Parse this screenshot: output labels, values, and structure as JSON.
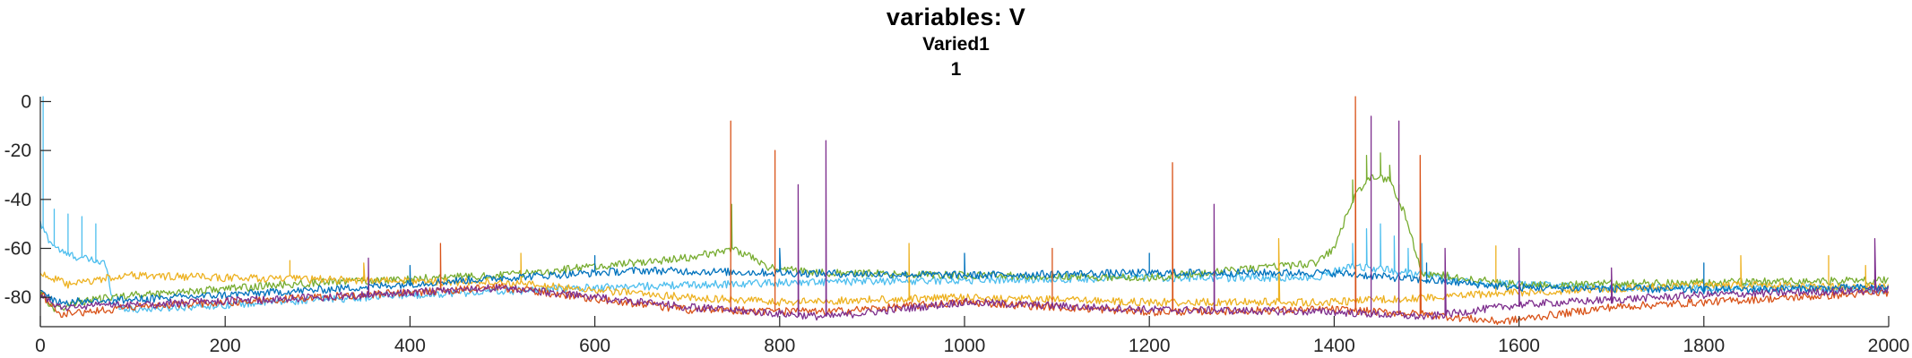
{
  "chart_data": {
    "type": "line",
    "title": "variables: V",
    "subtitle_lines": [
      "Varied1",
      "1"
    ],
    "xlabel": "",
    "ylabel": "",
    "xlim": [
      0,
      2000
    ],
    "ylim": [
      -92,
      2
    ],
    "x_ticks": [
      0,
      200,
      400,
      600,
      800,
      1000,
      1200,
      1400,
      1600,
      1800,
      2000
    ],
    "y_ticks": [
      0,
      -20,
      -40,
      -60,
      -80
    ],
    "grid": false,
    "legend": "none",
    "baseline": -92,
    "series": [
      {
        "color": "#4DBEEE",
        "baseline_points": [
          [
            0,
            -50
          ],
          [
            10,
            -57
          ],
          [
            25,
            -62
          ],
          [
            45,
            -64
          ],
          [
            70,
            -66
          ],
          [
            78,
            -80
          ],
          [
            85,
            -84
          ],
          [
            100,
            -85
          ],
          [
            150,
            -84
          ],
          [
            250,
            -82
          ],
          [
            400,
            -79
          ],
          [
            600,
            -76
          ],
          [
            800,
            -74
          ],
          [
            1000,
            -73
          ],
          [
            1200,
            -72
          ],
          [
            1380,
            -72
          ],
          [
            1420,
            -67
          ],
          [
            1500,
            -71
          ],
          [
            1560,
            -74
          ],
          [
            1700,
            -76
          ],
          [
            1900,
            -76
          ],
          [
            2000,
            -77
          ]
        ],
        "spikes": [
          [
            3,
            2
          ],
          [
            15,
            -44
          ],
          [
            30,
            -46
          ],
          [
            45,
            -47
          ],
          [
            60,
            -50
          ],
          [
            1420,
            -58
          ],
          [
            1435,
            -52
          ],
          [
            1450,
            -50
          ],
          [
            1465,
            -55
          ],
          [
            1480,
            -60
          ],
          [
            1495,
            -58
          ]
        ]
      },
      {
        "color": "#77AC30",
        "baseline_points": [
          [
            0,
            -78
          ],
          [
            15,
            -85
          ],
          [
            40,
            -82
          ],
          [
            100,
            -79
          ],
          [
            300,
            -74
          ],
          [
            500,
            -71
          ],
          [
            640,
            -66
          ],
          [
            700,
            -64
          ],
          [
            750,
            -60
          ],
          [
            790,
            -68
          ],
          [
            850,
            -70
          ],
          [
            1000,
            -71
          ],
          [
            1200,
            -72
          ],
          [
            1380,
            -66
          ],
          [
            1400,
            -60
          ],
          [
            1420,
            -40
          ],
          [
            1440,
            -30
          ],
          [
            1460,
            -32
          ],
          [
            1475,
            -45
          ],
          [
            1495,
            -70
          ],
          [
            1600,
            -75
          ],
          [
            1800,
            -74
          ],
          [
            2000,
            -73
          ]
        ],
        "spikes": [
          [
            748,
            -42
          ],
          [
            1420,
            -32
          ],
          [
            1435,
            -22
          ],
          [
            1450,
            -21
          ],
          [
            1460,
            -26
          ],
          [
            1470,
            -34
          ]
        ]
      },
      {
        "color": "#EDB120",
        "baseline_points": [
          [
            0,
            -70
          ],
          [
            30,
            -75
          ],
          [
            90,
            -71
          ],
          [
            200,
            -72
          ],
          [
            500,
            -74
          ],
          [
            700,
            -80
          ],
          [
            800,
            -82
          ],
          [
            1000,
            -80
          ],
          [
            1200,
            -82
          ],
          [
            1400,
            -82
          ],
          [
            1600,
            -78
          ],
          [
            1800,
            -75
          ],
          [
            2000,
            -76
          ]
        ],
        "spikes": [
          [
            270,
            -65
          ],
          [
            350,
            -66
          ],
          [
            520,
            -62
          ],
          [
            940,
            -58
          ],
          [
            1340,
            -56
          ],
          [
            1575,
            -59
          ],
          [
            1840,
            -63
          ],
          [
            1935,
            -63
          ],
          [
            1975,
            -67
          ]
        ]
      },
      {
        "color": "#0072BD",
        "baseline_points": [
          [
            0,
            -78
          ],
          [
            20,
            -82
          ],
          [
            100,
            -81
          ],
          [
            300,
            -77
          ],
          [
            500,
            -72
          ],
          [
            650,
            -69
          ],
          [
            800,
            -70
          ],
          [
            1000,
            -71
          ],
          [
            1200,
            -70
          ],
          [
            1400,
            -70
          ],
          [
            1500,
            -73
          ],
          [
            1600,
            -76
          ],
          [
            1800,
            -77
          ],
          [
            2000,
            -76
          ]
        ],
        "spikes": [
          [
            400,
            -67
          ],
          [
            600,
            -63
          ],
          [
            800,
            -60
          ],
          [
            1000,
            -62
          ],
          [
            1200,
            -62
          ],
          [
            1500,
            -66
          ],
          [
            1800,
            -66
          ]
        ]
      },
      {
        "color": "#D95319",
        "baseline_points": [
          [
            0,
            -78
          ],
          [
            20,
            -87
          ],
          [
            100,
            -84
          ],
          [
            300,
            -80
          ],
          [
            500,
            -76
          ],
          [
            700,
            -85
          ],
          [
            850,
            -86
          ],
          [
            1000,
            -82
          ],
          [
            1200,
            -86
          ],
          [
            1400,
            -85
          ],
          [
            1500,
            -87
          ],
          [
            1580,
            -90
          ],
          [
            1700,
            -84
          ],
          [
            1900,
            -80
          ],
          [
            2000,
            -78
          ]
        ],
        "spikes": [
          [
            433,
            -58
          ],
          [
            747,
            -8
          ],
          [
            795,
            -20
          ],
          [
            1095,
            -60
          ],
          [
            1225,
            -25
          ],
          [
            1423,
            2
          ],
          [
            1493,
            -22
          ]
        ]
      },
      {
        "color": "#7E2F8E",
        "baseline_points": [
          [
            0,
            -80
          ],
          [
            20,
            -84
          ],
          [
            100,
            -83
          ],
          [
            300,
            -80
          ],
          [
            500,
            -76
          ],
          [
            700,
            -84
          ],
          [
            850,
            -88
          ],
          [
            1000,
            -82
          ],
          [
            1200,
            -85
          ],
          [
            1400,
            -86
          ],
          [
            1500,
            -88
          ],
          [
            1600,
            -83
          ],
          [
            1800,
            -79
          ],
          [
            2000,
            -77
          ]
        ],
        "spikes": [
          [
            355,
            -64
          ],
          [
            820,
            -34
          ],
          [
            850,
            -16
          ],
          [
            1270,
            -42
          ],
          [
            1440,
            -6
          ],
          [
            1470,
            -8
          ],
          [
            1520,
            -60
          ],
          [
            1600,
            -60
          ],
          [
            1700,
            -68
          ],
          [
            1985,
            -56
          ]
        ]
      }
    ]
  }
}
